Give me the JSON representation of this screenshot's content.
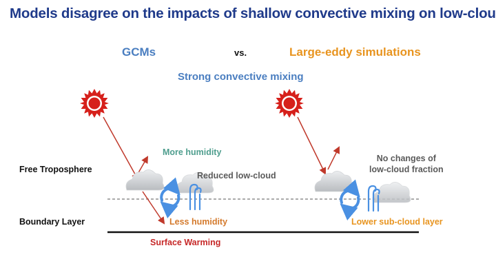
{
  "title": "Models disagree on the impacts of shallow convective mixing on low-clouds",
  "gcm_heading": "GCMs",
  "vs_label": "vs.",
  "les_heading": "Large-eddy simulations",
  "subtitle": "Strong convective mixing",
  "more_humidity": "More humidity",
  "reduced_low_cloud": "Reduced low-cloud",
  "no_changes": [
    "No changes of",
    "low-cloud fraction"
  ],
  "free_troposphere": "Free Troposphere",
  "boundary_layer": "Boundary Layer",
  "less_humidity": "Less humidity",
  "lower_sub_cloud": "Lower sub-cloud layer",
  "surface_warming": "Surface Warming",
  "icons": [
    "sun-icon",
    "cloud-icon",
    "convective-cycle-icon",
    "updraft-icon"
  ],
  "colors": {
    "title": "#1f3a8a",
    "gcm": "#4a7ec0",
    "les": "#e8941f",
    "humidity_up": "#4f9e8e",
    "humidity_down": "#d47a2c",
    "warming": "#c62828",
    "arrow": "#c0392b",
    "sun": "#d6201b",
    "cloud": "#c7c9cc"
  }
}
